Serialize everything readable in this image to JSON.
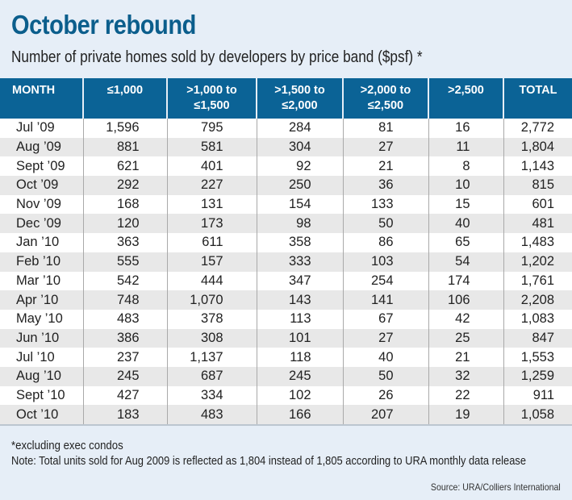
{
  "title": "October rebound",
  "subtitle": "Number of private homes sold by developers by price band ($psf) *",
  "colors": {
    "header_bg": "#0b6396",
    "title": "#0b5e8c",
    "background": "#e6eef7",
    "row_alt": "#e8e8e8"
  },
  "chart_data": {
    "type": "table",
    "title": "October rebound",
    "subtitle": "Number of private homes sold by developers by price band ($psf) *",
    "columns": [
      {
        "line1": "MONTH",
        "line2": ""
      },
      {
        "line1": "≤1,000",
        "line2": ""
      },
      {
        "line1": ">1,000 to",
        "line2": "≤1,500"
      },
      {
        "line1": ">1,500 to",
        "line2": "≤2,000"
      },
      {
        "line1": ">2,000 to",
        "line2": "≤2,500"
      },
      {
        "line1": ">2,500",
        "line2": ""
      },
      {
        "line1": "TOTAL",
        "line2": ""
      }
    ],
    "rows": [
      [
        "Jul ’09",
        "1,596",
        "795",
        "284",
        "81",
        "16",
        "2,772"
      ],
      [
        "Aug ’09",
        "881",
        "581",
        "304",
        "27",
        "11",
        "1,804"
      ],
      [
        "Sept ’09",
        "621",
        "401",
        "92",
        "21",
        "8",
        "1,143"
      ],
      [
        "Oct ’09",
        "292",
        "227",
        "250",
        "36",
        "10",
        "815"
      ],
      [
        "Nov ’09",
        "168",
        "131",
        "154",
        "133",
        "15",
        "601"
      ],
      [
        "Dec ’09",
        "120",
        "173",
        "98",
        "50",
        "40",
        "481"
      ],
      [
        "Jan ’10",
        "363",
        "611",
        "358",
        "86",
        "65",
        "1,483"
      ],
      [
        "Feb ’10",
        "555",
        "157",
        "333",
        "103",
        "54",
        "1,202"
      ],
      [
        "Mar ’10",
        "542",
        "444",
        "347",
        "254",
        "174",
        "1,761"
      ],
      [
        "Apr ’10",
        "748",
        "1,070",
        "143",
        "141",
        "106",
        "2,208"
      ],
      [
        "May ’10",
        "483",
        "378",
        "113",
        "67",
        "42",
        "1,083"
      ],
      [
        "Jun ’10",
        "386",
        "308",
        "101",
        "27",
        "25",
        "847"
      ],
      [
        "Jul ’10",
        "237",
        "1,137",
        "118",
        "40",
        "21",
        "1,553"
      ],
      [
        "Aug ’10",
        "245",
        "687",
        "245",
        "50",
        "32",
        "1,259"
      ],
      [
        "Sept ’10",
        "427",
        "334",
        "102",
        "26",
        "22",
        "911"
      ],
      [
        "Oct ’10",
        "183",
        "483",
        "166",
        "207",
        "19",
        "1,058"
      ]
    ]
  },
  "footnotes": {
    "asterisk": "*excluding exec condos",
    "note": "Note: Total units sold for Aug 2009 is reflected as 1,804 instead of 1,805 according to URA monthly data release",
    "source": "Source:  URA/Colliers International"
  }
}
